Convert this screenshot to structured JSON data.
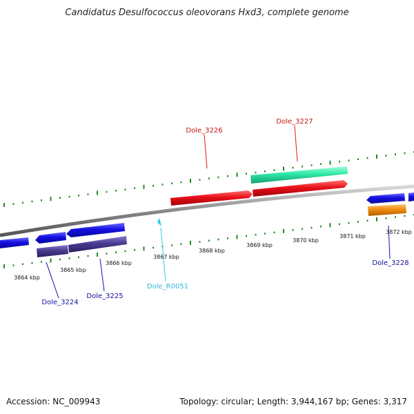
{
  "title": "Candidatus Desulfococcus oleovorans Hxd3, complete genome",
  "footer": {
    "accession": "Accession: NC_009943",
    "summary": "Topology: circular; Length: 3,944,167 bp; Genes: 3,317"
  },
  "colors": {
    "backbone": "#8a8a8a",
    "tick": "#1f8a1f",
    "gene_forward": "#e8101a",
    "gene_forward_alt": "#2ee8a8",
    "gene_reverse": "#1410e0",
    "gene_reverse_shadow": "#4a3a90",
    "gene_orange": "#f08c10",
    "rna": "#30c8e8",
    "label_red": "#c81010",
    "label_blue": "#1010a0",
    "label_cyan": "#30b8d8"
  },
  "kbp_labels": [
    {
      "kbp": 3864,
      "text": "3864 kbp"
    },
    {
      "kbp": 3865,
      "text": "3865 kbp"
    },
    {
      "kbp": 3866,
      "text": "3866 kbp"
    },
    {
      "kbp": 3867,
      "text": "3867 kbp"
    },
    {
      "kbp": 3868,
      "text": "3868 kbp"
    },
    {
      "kbp": 3869,
      "text": "3869 kbp"
    },
    {
      "kbp": 3870,
      "text": "3870 kbp"
    },
    {
      "kbp": 3871,
      "text": "3871 kbp"
    },
    {
      "kbp": 3872,
      "text": "3872 kbp"
    }
  ],
  "gene_labels": [
    {
      "id": "Dole_3224",
      "text": "Dole_3224",
      "strand": "reverse"
    },
    {
      "id": "Dole_3225",
      "text": "Dole_3225",
      "strand": "reverse"
    },
    {
      "id": "Dole_R0051",
      "text": "Dole_R0051",
      "strand": "rna"
    },
    {
      "id": "Dole_3226",
      "text": "Dole_3226",
      "strand": "forward"
    },
    {
      "id": "Dole_3227",
      "text": "Dole_3227",
      "strand": "forward"
    },
    {
      "id": "Dole_3228",
      "text": "Dole_3228",
      "strand": "reverse"
    }
  ]
}
